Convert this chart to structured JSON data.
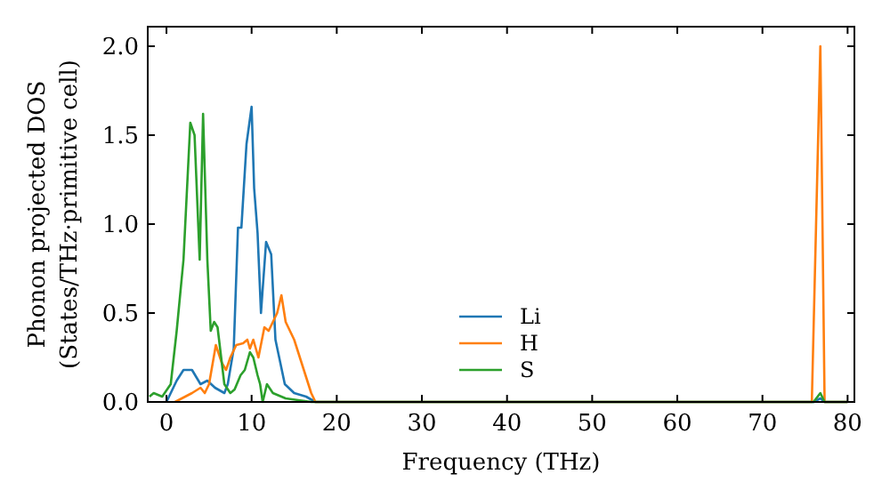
{
  "chart_data": {
    "type": "line",
    "xlabel": "Frequency (THz)",
    "ylabel": "Phonon projected DOS\n(States/THz·primitive cell)",
    "xlim": [
      -2.2,
      80.8
    ],
    "ylim": [
      0,
      2.11
    ],
    "xticks": [
      0,
      10,
      20,
      30,
      40,
      50,
      60,
      70,
      80
    ],
    "yticks": [
      {
        "value": 0,
        "label": "0.0"
      },
      {
        "value": 0.5,
        "label": "0.5"
      },
      {
        "value": 1,
        "label": "1.0"
      },
      {
        "value": 1.5,
        "label": "1.5"
      },
      {
        "value": 2,
        "label": "2.0"
      }
    ],
    "legend": "bottom",
    "grid": false,
    "marker": "none",
    "line_style": "solid",
    "series": [
      {
        "name": "Li",
        "color": "#1f77b4",
        "x": [
          0,
          1.2,
          2,
          3,
          4,
          4.8,
          5.7,
          6.8,
          7.2,
          7.9,
          8.4,
          8.8,
          9.4,
          10,
          10.3,
          10.7,
          11.1,
          11.7,
          12.3,
          12.8,
          13.9,
          15,
          16.4,
          17.5,
          20,
          76,
          76.8,
          77.3,
          80
        ],
        "values": [
          0,
          0.12,
          0.18,
          0.18,
          0.1,
          0.12,
          0.08,
          0.05,
          0.1,
          0.3,
          0.98,
          0.98,
          1.45,
          1.66,
          1.2,
          0.95,
          0.5,
          0.9,
          0.83,
          0.35,
          0.1,
          0.05,
          0.03,
          0,
          0,
          0,
          0.02,
          0,
          0
        ]
      },
      {
        "name": "H",
        "color": "#ff7f0e",
        "x": [
          1,
          3,
          4,
          4.5,
          5,
          5.8,
          6.5,
          7,
          7.5,
          8.2,
          9,
          9.5,
          9.8,
          10.2,
          10.8,
          11.5,
          12,
          13,
          13.5,
          14,
          15,
          16,
          17,
          17.5,
          75.8,
          76.8,
          77.3,
          80
        ],
        "values": [
          0,
          0.05,
          0.08,
          0.05,
          0.1,
          0.32,
          0.22,
          0.18,
          0.25,
          0.32,
          0.33,
          0.35,
          0.3,
          0.35,
          0.25,
          0.42,
          0.4,
          0.5,
          0.6,
          0.45,
          0.35,
          0.2,
          0.05,
          0,
          0,
          2.0,
          0,
          0
        ]
      },
      {
        "name": "S",
        "color": "#2ca02c",
        "x": [
          -2,
          -1.5,
          -0.5,
          0.5,
          1.2,
          2,
          2.8,
          3.3,
          3.9,
          4.3,
          4.8,
          5.2,
          5.6,
          6,
          6.8,
          7.5,
          8,
          8.7,
          9.2,
          9.8,
          10.2,
          10.7,
          11,
          11.3,
          11.8,
          12.5,
          14,
          17,
          76,
          76.8,
          77.3,
          80
        ],
        "values": [
          0.03,
          0.05,
          0.03,
          0.1,
          0.4,
          0.8,
          1.57,
          1.5,
          0.8,
          1.62,
          0.8,
          0.4,
          0.45,
          0.42,
          0.1,
          0.05,
          0.07,
          0.15,
          0.18,
          0.28,
          0.25,
          0.15,
          0.1,
          0,
          0.1,
          0.05,
          0.02,
          0,
          0,
          0.05,
          0,
          0
        ]
      }
    ]
  }
}
